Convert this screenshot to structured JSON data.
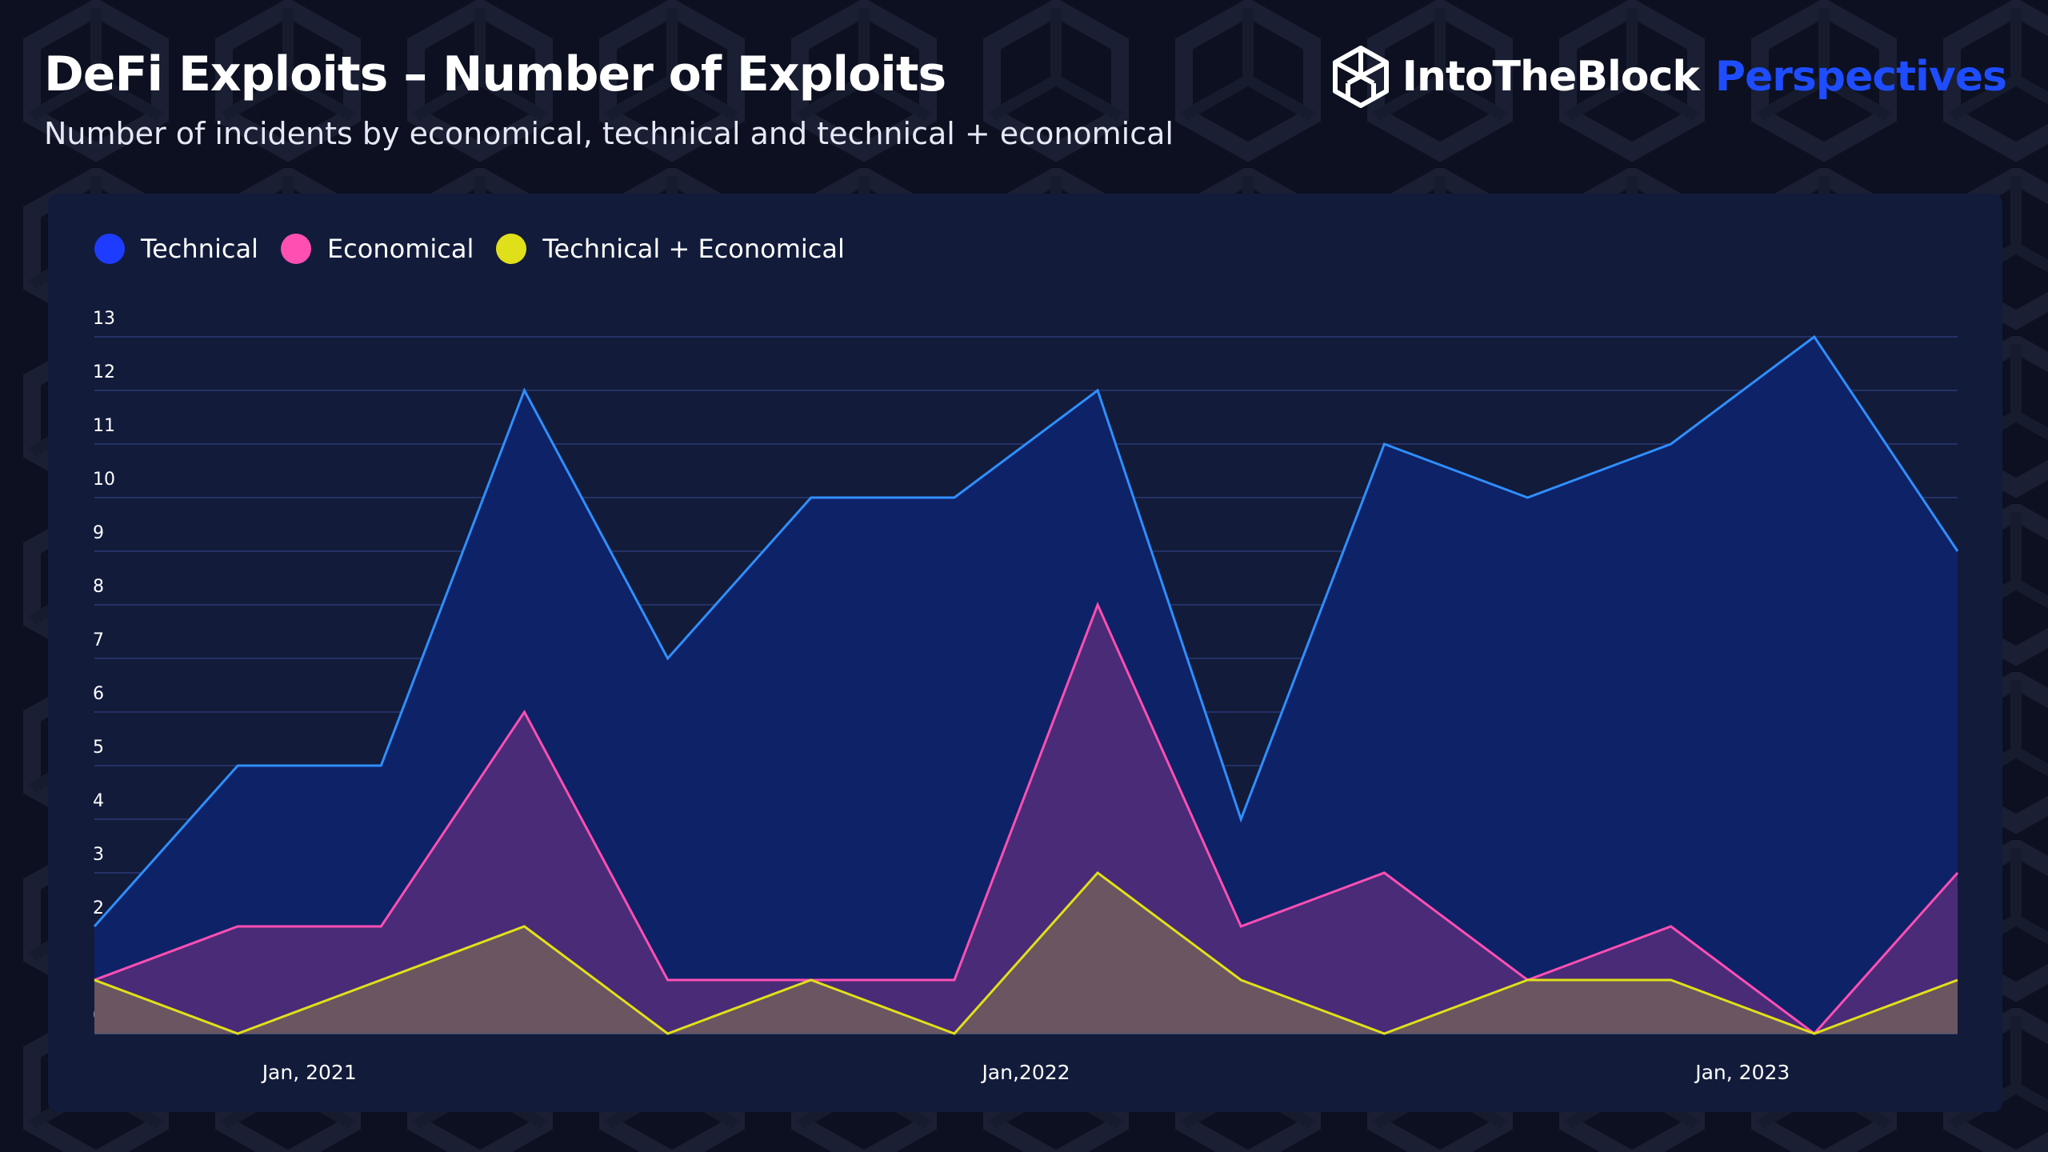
{
  "header": {
    "title": "DeFi Exploits – Number of Exploits",
    "subtitle": "Number of incidents by economical, technical and technical + economical"
  },
  "brand": {
    "name": "IntoTheBlock",
    "product": "Perspectives",
    "logo_icon": "cube-logo-icon",
    "accent_color": "#1e4dff"
  },
  "colors": {
    "technical": "#2f8fff",
    "economical": "#ff4fb3",
    "technical_economical": "#e0e01a",
    "legend_technical": "#1e3cff",
    "legend_economical": "#ff4fb3",
    "legend_technical_economical": "#e0e01a"
  },
  "chart_data": {
    "type": "area",
    "title": "DeFi Exploits – Number of Exploits",
    "subtitle": "Number of incidents by economical, technical and technical + economical",
    "x_ticks": [
      {
        "label": "Jan, 2021",
        "index": 1.5
      },
      {
        "label": "Jan,2022",
        "index": 6.5
      },
      {
        "label": "Jan, 2023",
        "index": 11.5
      }
    ],
    "ylim": [
      0,
      13
    ],
    "y_ticks": [
      0,
      1,
      2,
      3,
      4,
      5,
      6,
      7,
      8,
      9,
      10,
      11,
      12,
      13
    ],
    "grid": true,
    "legend_position": "top-left",
    "series": [
      {
        "name": "Technical",
        "values": [
          2,
          5,
          5,
          12,
          7,
          10,
          10,
          12,
          4,
          11,
          10,
          11,
          13,
          9
        ]
      },
      {
        "name": "Economical",
        "values": [
          1,
          2,
          2,
          6,
          1,
          1,
          1,
          8,
          2,
          3,
          1,
          2,
          0,
          3
        ]
      },
      {
        "name": "Technical + Economical",
        "values": [
          1,
          0,
          1,
          2,
          0,
          1,
          0,
          3,
          1,
          0,
          1,
          1,
          0,
          1
        ]
      }
    ]
  }
}
